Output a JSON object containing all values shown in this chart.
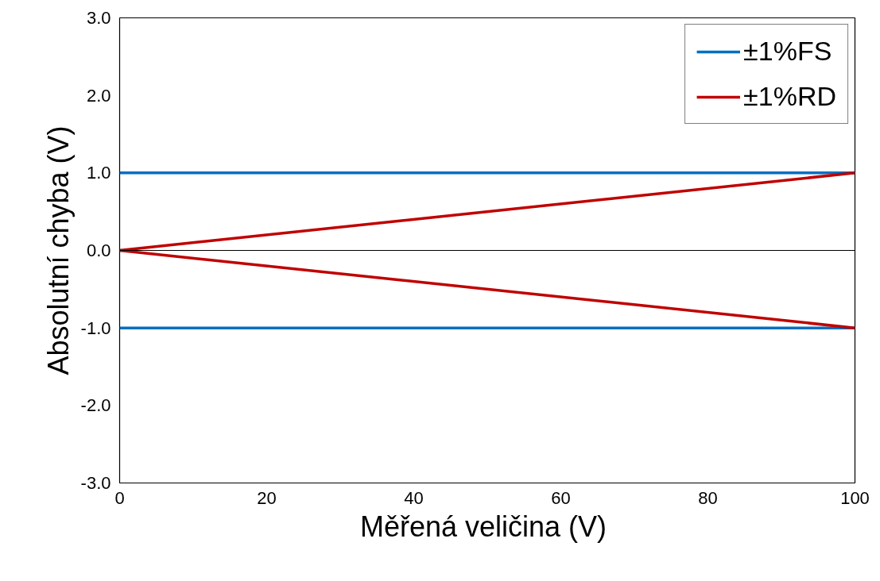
{
  "chart_data": {
    "type": "line",
    "xlabel": "Měřená veličina  (V)",
    "ylabel": "Absolutní chyba (V)",
    "x": [
      0,
      100
    ],
    "xlim": [
      0,
      100
    ],
    "xticks": [
      0,
      20,
      40,
      60,
      80,
      100
    ],
    "ylim": [
      -3,
      3
    ],
    "yticks": [
      {
        "value": -3,
        "label": "-3.0"
      },
      {
        "value": -2,
        "label": "-2.0"
      },
      {
        "value": -1,
        "label": "-1.0"
      },
      {
        "value": 0,
        "label": "0.0"
      },
      {
        "value": 1,
        "label": "1.0"
      },
      {
        "value": 2,
        "label": "2.0"
      },
      {
        "value": 3,
        "label": "3.0"
      }
    ],
    "grid": false,
    "legend": "top right",
    "marker": "none",
    "line_style": "solid",
    "ref_lines": [
      {
        "axis": "y",
        "value": 0,
        "label": null,
        "color": "#000000"
      }
    ],
    "series": [
      {
        "name": "±1%FS",
        "color": "#0070c0",
        "values": [
          1,
          1
        ]
      },
      {
        "name": "±1%RD",
        "color": "#c00000",
        "values": [
          0,
          1
        ]
      },
      {
        "color": "#0070c0",
        "values": [
          -1,
          -1
        ]
      },
      {
        "color": "#c00000",
        "values": [
          0,
          -1
        ]
      }
    ]
  }
}
